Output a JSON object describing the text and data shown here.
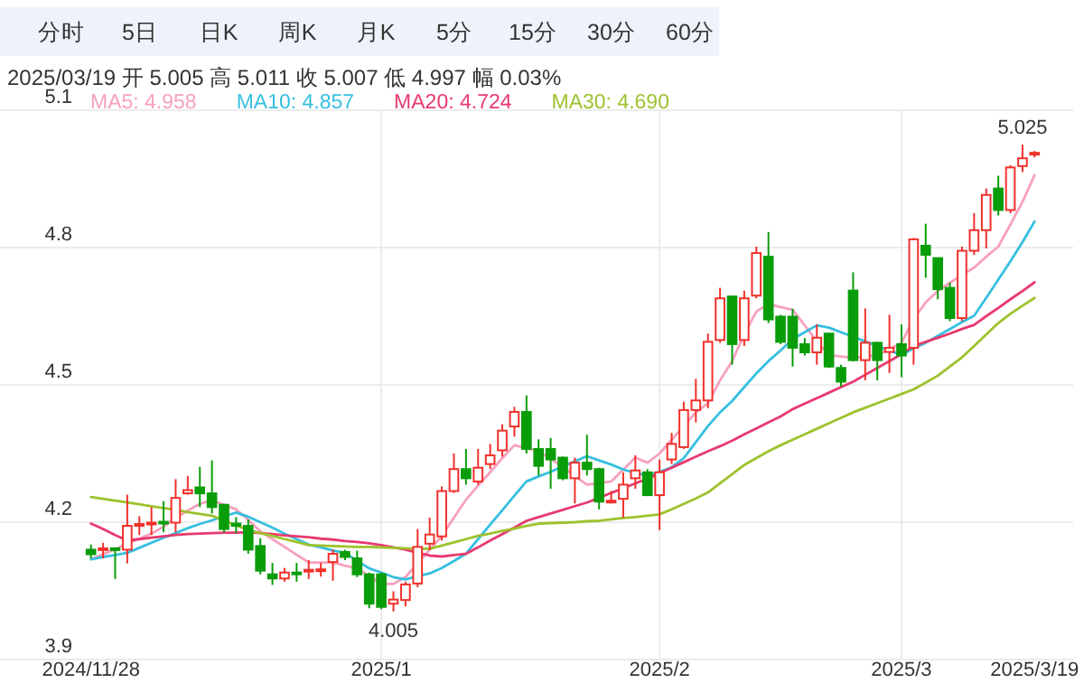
{
  "chart_data": {
    "type": "candlestick",
    "title": "2025/03/19 开 5.005 高 5.011 收 5.007 低 4.997 幅 0.03%",
    "annotations": [
      "分时",
      "5日",
      "日K",
      "周K",
      "月K",
      "5分",
      "15分",
      "30分",
      "60分",
      {
        "text": "5.025",
        "y": 5.025
      },
      {
        "text": "4.005",
        "y": 4.005
      }
    ],
    "categories": [
      "2024/11/28",
      null,
      null,
      null,
      null,
      null,
      null,
      null,
      null,
      null,
      null,
      null,
      null,
      null,
      null,
      null,
      null,
      null,
      null,
      null,
      null,
      null,
      null,
      null,
      "2025/1",
      null,
      null,
      null,
      null,
      null,
      null,
      null,
      null,
      null,
      null,
      null,
      null,
      null,
      null,
      null,
      null,
      null,
      null,
      null,
      null,
      null,
      null,
      "2025/2",
      null,
      null,
      null,
      null,
      null,
      null,
      null,
      null,
      null,
      null,
      null,
      null,
      null,
      null,
      null,
      null,
      null,
      null,
      null,
      "2025/3",
      null,
      null,
      null,
      null,
      null,
      null,
      null,
      null,
      null,
      null,
      "2025/3/19"
    ],
    "ohlc": [
      [
        4.14,
        4.151,
        4.121,
        4.13
      ],
      [
        4.141,
        4.155,
        4.121,
        4.143
      ],
      [
        4.143,
        4.144,
        4.076,
        4.14
      ],
      [
        4.14,
        4.26,
        4.11,
        4.192
      ],
      [
        4.193,
        4.213,
        4.172,
        4.196
      ],
      [
        4.197,
        4.233,
        4.172,
        4.199
      ],
      [
        4.201,
        4.246,
        4.178,
        4.197
      ],
      [
        4.199,
        4.294,
        4.178,
        4.253
      ],
      [
        4.263,
        4.301,
        4.26,
        4.27
      ],
      [
        4.276,
        4.321,
        4.233,
        4.263
      ],
      [
        4.263,
        4.335,
        4.219,
        4.233
      ],
      [
        4.238,
        4.24,
        4.178,
        4.185
      ],
      [
        4.197,
        4.211,
        4.176,
        4.192
      ],
      [
        4.192,
        4.206,
        4.131,
        4.14
      ],
      [
        4.148,
        4.165,
        4.086,
        4.094
      ],
      [
        4.086,
        4.111,
        4.063,
        4.077
      ],
      [
        4.077,
        4.1,
        4.07,
        4.09
      ],
      [
        4.09,
        4.111,
        4.07,
        4.087
      ],
      [
        4.094,
        4.117,
        4.076,
        4.096
      ],
      [
        4.095,
        4.111,
        4.081,
        4.097
      ],
      [
        4.113,
        4.14,
        4.072,
        4.131
      ],
      [
        4.135,
        4.14,
        4.117,
        4.124
      ],
      [
        4.121,
        4.138,
        4.08,
        4.086
      ],
      [
        4.086,
        4.09,
        4.012,
        4.022
      ],
      [
        4.086,
        4.09,
        4.01,
        4.015
      ],
      [
        4.022,
        4.049,
        4.005,
        4.031
      ],
      [
        4.03,
        4.07,
        4.016,
        4.064
      ],
      [
        4.066,
        4.185,
        4.058,
        4.146
      ],
      [
        4.153,
        4.21,
        4.139,
        4.173
      ],
      [
        4.169,
        4.278,
        4.16,
        4.268
      ],
      [
        4.268,
        4.35,
        4.264,
        4.316
      ],
      [
        4.316,
        4.36,
        4.282,
        4.296
      ],
      [
        4.289,
        4.36,
        4.282,
        4.319
      ],
      [
        4.327,
        4.371,
        4.316,
        4.346
      ],
      [
        4.357,
        4.414,
        4.343,
        4.4
      ],
      [
        4.409,
        4.452,
        4.387,
        4.441
      ],
      [
        4.441,
        4.477,
        4.35,
        4.36
      ],
      [
        4.36,
        4.381,
        4.302,
        4.323
      ],
      [
        4.36,
        4.384,
        4.273,
        4.337
      ],
      [
        4.341,
        4.343,
        4.292,
        4.296
      ],
      [
        4.296,
        4.341,
        4.241,
        4.33
      ],
      [
        4.33,
        4.391,
        4.302,
        4.316
      ],
      [
        4.316,
        4.319,
        4.228,
        4.245
      ],
      [
        4.245,
        4.268,
        4.241,
        4.247
      ],
      [
        4.251,
        4.309,
        4.21,
        4.282
      ],
      [
        4.296,
        4.346,
        4.273,
        4.313
      ],
      [
        4.309,
        4.316,
        4.259,
        4.259
      ],
      [
        4.259,
        4.337,
        4.183,
        4.309
      ],
      [
        4.337,
        4.395,
        4.327,
        4.371
      ],
      [
        4.364,
        4.463,
        4.36,
        4.445
      ],
      [
        4.445,
        4.513,
        4.418,
        4.466
      ],
      [
        4.466,
        4.612,
        4.449,
        4.594
      ],
      [
        4.598,
        4.712,
        4.592,
        4.689
      ],
      [
        4.693,
        4.695,
        4.544,
        4.589
      ],
      [
        4.598,
        4.706,
        4.585,
        4.689
      ],
      [
        4.695,
        4.802,
        4.689,
        4.788
      ],
      [
        4.78,
        4.834,
        4.635,
        4.643
      ],
      [
        4.649,
        4.653,
        4.589,
        4.594
      ],
      [
        4.649,
        4.666,
        4.54,
        4.581
      ],
      [
        4.589,
        4.602,
        4.564,
        4.571
      ],
      [
        4.571,
        4.632,
        4.544,
        4.603
      ],
      [
        4.612,
        4.612,
        4.537,
        4.54
      ],
      [
        4.537,
        4.544,
        4.496,
        4.507
      ],
      [
        4.706,
        4.746,
        4.551,
        4.554
      ],
      [
        4.554,
        4.667,
        4.51,
        4.592
      ],
      [
        4.592,
        4.594,
        4.51,
        4.554
      ],
      [
        4.572,
        4.653,
        4.526,
        4.581
      ],
      [
        4.589,
        4.632,
        4.517,
        4.564
      ],
      [
        4.581,
        4.821,
        4.544,
        4.818
      ],
      [
        4.804,
        4.852,
        4.734,
        4.784
      ],
      [
        4.777,
        4.777,
        4.687,
        4.709
      ],
      [
        4.712,
        4.723,
        4.639,
        4.646
      ],
      [
        4.646,
        4.802,
        4.639,
        4.793
      ],
      [
        4.793,
        4.875,
        4.784,
        4.838
      ],
      [
        4.838,
        4.929,
        4.798,
        4.915
      ],
      [
        4.929,
        4.957,
        4.87,
        4.882
      ],
      [
        4.882,
        4.98,
        4.875,
        4.975
      ],
      [
        4.978,
        5.025,
        4.965,
        4.995
      ],
      [
        5.005,
        5.011,
        4.997,
        5.007
      ]
    ],
    "series": [
      {
        "name": "MA5: 4.958",
        "type": "line",
        "color": "#f7a1bd",
        "values": [
          4.119,
          4.13,
          4.141,
          4.153,
          4.164,
          4.175,
          4.19,
          4.21,
          4.225,
          4.24,
          4.248,
          4.238,
          4.228,
          4.205,
          4.18,
          4.163,
          4.146,
          4.129,
          4.112,
          4.112,
          4.112,
          4.105,
          4.099,
          4.082,
          4.065,
          4.065,
          4.08,
          4.11,
          4.14,
          4.17,
          4.21,
          4.249,
          4.28,
          4.309,
          4.34,
          4.368,
          4.362,
          4.355,
          4.338,
          4.322,
          4.3,
          4.282,
          4.285,
          4.289,
          4.315,
          4.341,
          4.33,
          4.35,
          4.38,
          4.41,
          4.44,
          4.46,
          4.51,
          4.552,
          4.61,
          4.66,
          4.677,
          4.67,
          4.664,
          4.63,
          4.595,
          4.565,
          4.562,
          4.559,
          4.562,
          4.565,
          4.578,
          4.592,
          4.644,
          4.68,
          4.705,
          4.723,
          4.74,
          4.756,
          4.78,
          4.802,
          4.85,
          4.9,
          4.958
        ]
      },
      {
        "name": "MA10: 4.857",
        "type": "line",
        "color": "#36bfe0",
        "values": [
          4.119,
          4.124,
          4.128,
          4.133,
          4.144,
          4.155,
          4.166,
          4.176,
          4.187,
          4.196,
          4.204,
          4.213,
          4.221,
          4.212,
          4.2,
          4.188,
          4.175,
          4.163,
          4.151,
          4.145,
          4.138,
          4.133,
          4.116,
          4.099,
          4.09,
          4.08,
          4.075,
          4.082,
          4.088,
          4.1,
          4.115,
          4.131,
          4.163,
          4.195,
          4.226,
          4.258,
          4.289,
          4.3,
          4.31,
          4.322,
          4.333,
          4.344,
          4.335,
          4.326,
          4.315,
          4.308,
          4.302,
          4.31,
          4.32,
          4.34,
          4.375,
          4.41,
          4.44,
          4.465,
          4.495,
          4.525,
          4.552,
          4.575,
          4.6,
          4.615,
          4.63,
          4.625,
          4.615,
          4.605,
          4.595,
          4.585,
          4.575,
          4.565,
          4.58,
          4.592,
          4.607,
          4.622,
          4.637,
          4.651,
          4.69,
          4.73,
          4.77,
          4.812,
          4.857
        ]
      },
      {
        "name": "MA20: 4.724",
        "type": "line",
        "color": "#e83a6e",
        "values": [
          4.197,
          4.185,
          4.172,
          4.16,
          4.163,
          4.166,
          4.169,
          4.172,
          4.174,
          4.175,
          4.176,
          4.177,
          4.177,
          4.178,
          4.176,
          4.174,
          4.171,
          4.169,
          4.167,
          4.164,
          4.162,
          4.159,
          4.157,
          4.154,
          4.15,
          4.145,
          4.14,
          4.133,
          4.127,
          4.125,
          4.128,
          4.131,
          4.145,
          4.16,
          4.174,
          4.188,
          4.203,
          4.211,
          4.219,
          4.227,
          4.235,
          4.243,
          4.253,
          4.264,
          4.274,
          4.285,
          4.295,
          4.307,
          4.319,
          4.331,
          4.343,
          4.355,
          4.366,
          4.378,
          4.392,
          4.405,
          4.418,
          4.431,
          4.447,
          4.459,
          4.471,
          4.483,
          4.495,
          4.507,
          4.522,
          4.537,
          4.552,
          4.567,
          4.585,
          4.594,
          4.603,
          4.612,
          4.622,
          4.631,
          4.65,
          4.668,
          4.687,
          4.705,
          4.724
        ]
      },
      {
        "name": "MA30: 4.690",
        "type": "line",
        "color": "#9dc22d",
        "values": [
          4.255,
          4.251,
          4.247,
          4.243,
          4.239,
          4.235,
          4.231,
          4.227,
          4.222,
          4.218,
          4.214,
          4.204,
          4.193,
          4.183,
          4.176,
          4.17,
          4.163,
          4.157,
          4.15,
          4.149,
          4.148,
          4.147,
          4.146,
          4.146,
          4.145,
          4.144,
          4.143,
          4.142,
          4.142,
          4.149,
          4.156,
          4.163,
          4.17,
          4.175,
          4.181,
          4.186,
          4.192,
          4.197,
          4.198,
          4.199,
          4.2,
          4.202,
          4.203,
          4.206,
          4.209,
          4.211,
          4.214,
          4.217,
          4.228,
          4.24,
          4.252,
          4.265,
          4.285,
          4.305,
          4.325,
          4.34,
          4.355,
          4.368,
          4.38,
          4.392,
          4.404,
          4.416,
          4.428,
          4.44,
          4.45,
          4.46,
          4.47,
          4.48,
          4.49,
          4.505,
          4.52,
          4.54,
          4.56,
          4.585,
          4.61,
          4.635,
          4.655,
          4.673,
          4.69
        ]
      }
    ],
    "ylim": [
      3.9,
      5.1
    ],
    "yticks": [
      3.9,
      4.2,
      4.5,
      4.8,
      5.1
    ],
    "grid": true,
    "legend": "top"
  }
}
